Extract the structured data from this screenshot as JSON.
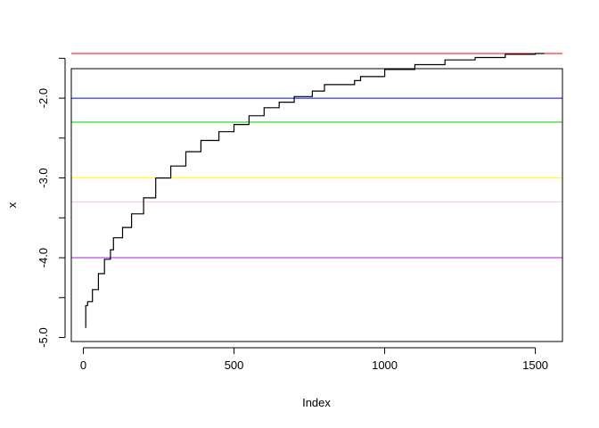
{
  "chart_data": {
    "type": "line",
    "title": "",
    "xlabel": "Index",
    "ylabel": "x",
    "xlim": [
      -40,
      1590
    ],
    "ylim": [
      -5.05,
      -1.63
    ],
    "xticks": [
      0,
      500,
      1000,
      1500
    ],
    "xtick_labels": [
      "0",
      "500",
      "1000",
      "1500"
    ],
    "yticks": [
      -5.0,
      -4.5,
      -4.0,
      -3.5,
      -3.0,
      -2.5,
      -2.0,
      -1.5
    ],
    "ytick_labels": [
      "-5.0",
      "",
      "-4.0",
      "",
      "-3.0",
      "",
      "-2.0",
      ""
    ],
    "grid": false,
    "series": [
      {
        "color": "#000000",
        "x": [
          8,
          14,
          30,
          50,
          70,
          90,
          100,
          130,
          160,
          200,
          240,
          290,
          340,
          390,
          450,
          500,
          550,
          600,
          650,
          700,
          760,
          800,
          900,
          920,
          1000,
          1100,
          1200,
          1300,
          1400,
          1500,
          1530
        ],
        "y": [
          -4.88,
          -4.6,
          -4.55,
          -4.4,
          -4.2,
          -4.02,
          -3.9,
          -3.75,
          -3.62,
          -3.45,
          -3.25,
          -3.0,
          -2.85,
          -2.67,
          -2.53,
          -2.42,
          -2.33,
          -2.22,
          -2.12,
          -2.05,
          -1.98,
          -1.91,
          -1.83,
          -1.78,
          -1.73,
          -1.64,
          -1.58,
          -1.52,
          -1.49,
          -1.45,
          -1.44
        ]
      }
    ],
    "hlines": [
      {
        "y": -1.44,
        "color": "#ff0000"
      },
      {
        "y": -2.0,
        "color": "#0000ff"
      },
      {
        "y": -2.3,
        "color": "#00cd00"
      },
      {
        "y": -3.0,
        "color": "#ffff00"
      },
      {
        "y": -3.3,
        "color": "#ffc0cb"
      },
      {
        "y": -4.0,
        "color": "#a020f0"
      }
    ]
  }
}
